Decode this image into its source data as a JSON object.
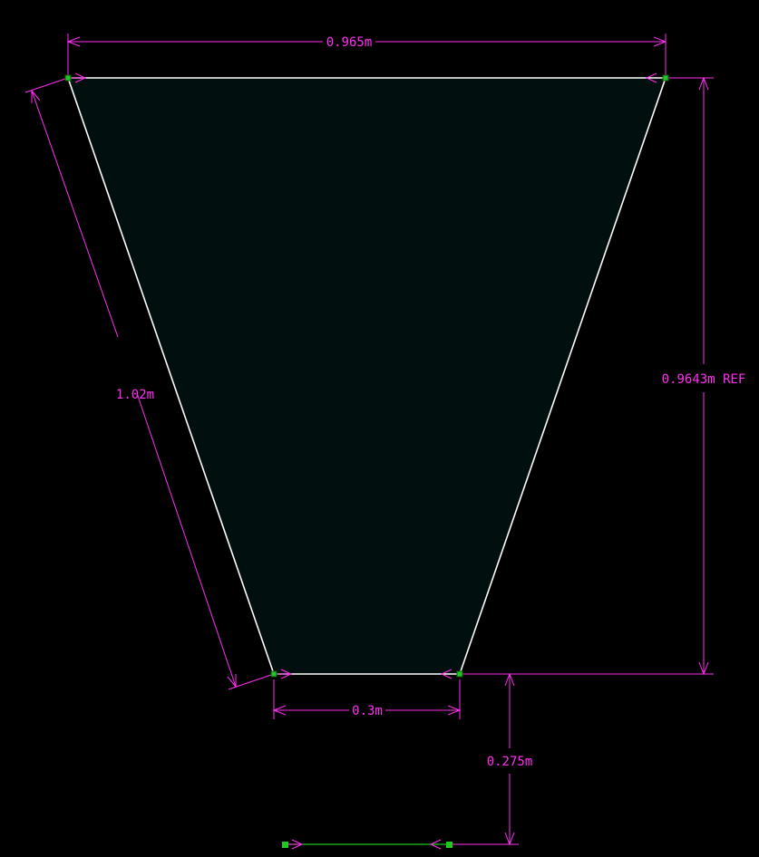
{
  "colors": {
    "background": "#000000",
    "shape_fill": "#020f0f",
    "shape_outline": "#ffffff",
    "dimension": "#ff2ff0",
    "grip": "#22c722",
    "guide_line": "#22c722"
  },
  "dimensions": {
    "top_width": "0.965m",
    "slant_edge": "1.02m",
    "height_ref": "0.9643m REF",
    "bottom_width": "0.3m",
    "offset_below": "0.275m"
  }
}
